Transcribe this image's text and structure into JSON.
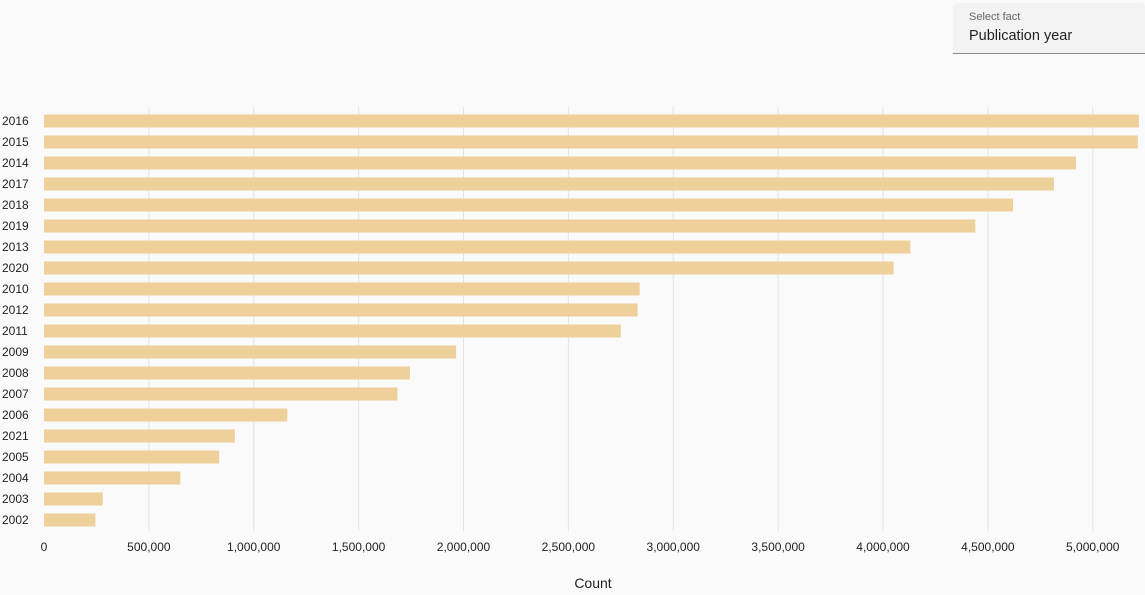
{
  "fact_selector": {
    "label": "Select fact",
    "value": "Publication year"
  },
  "colors": {
    "bar": "#eed09b",
    "grid": "#e3e3e3",
    "text": "#222222"
  },
  "chart_data": {
    "type": "bar",
    "orientation": "horizontal",
    "categories": [
      "2016",
      "2015",
      "2014",
      "2017",
      "2018",
      "2019",
      "2013",
      "2020",
      "2010",
      "2012",
      "2011",
      "2009",
      "2008",
      "2007",
      "2006",
      "2021",
      "2005",
      "2004",
      "2003",
      "2002"
    ],
    "values": [
      5220000,
      5215000,
      4920000,
      4815000,
      4620000,
      4440000,
      4130000,
      4050000,
      2840000,
      2830000,
      2750000,
      1965000,
      1745000,
      1685000,
      1160000,
      910000,
      835000,
      650000,
      280000,
      245000
    ],
    "xlabel": "Count",
    "ylabel": "",
    "xlim": [
      0,
      5230000
    ],
    "xticks": [
      0,
      500000,
      1000000,
      1500000,
      2000000,
      2500000,
      3000000,
      3500000,
      4000000,
      4500000,
      5000000
    ],
    "xtick_labels": [
      "0",
      "500,000",
      "1,000,000",
      "1,500,000",
      "2,000,000",
      "2,500,000",
      "3,000,000",
      "3,500,000",
      "4,000,000",
      "4,500,000",
      "5,000,000"
    ],
    "grid": true,
    "legend": "none"
  }
}
